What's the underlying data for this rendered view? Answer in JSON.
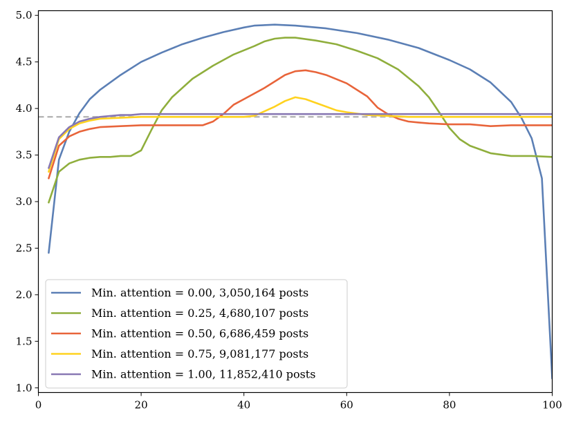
{
  "chart_data": {
    "type": "line",
    "title": "",
    "xlabel": "",
    "ylabel": "",
    "xlim": [
      0,
      100
    ],
    "ylim": [
      0.95,
      5.05
    ],
    "xticks": [
      0,
      20,
      40,
      60,
      80,
      100
    ],
    "yticks": [
      1.0,
      1.5,
      2.0,
      2.5,
      3.0,
      3.5,
      4.0,
      4.5,
      5.0
    ],
    "xtick_labels": [
      "0",
      "20",
      "40",
      "60",
      "80",
      "100"
    ],
    "ytick_labels": [
      "1.0",
      "1.5",
      "2.0",
      "2.5",
      "3.0",
      "3.5",
      "4.0",
      "4.5",
      "5.0"
    ],
    "grid": false,
    "legend_position": "lower-left",
    "reference_line": {
      "y": 3.91,
      "style": "dashed",
      "color": "#b0b0b0"
    },
    "series": [
      {
        "name": "Min. attention = 0.00, 3,050,164 posts",
        "color": "#5b7fb5",
        "x": [
          2,
          4,
          6,
          8,
          10,
          12,
          16,
          20,
          24,
          28,
          32,
          36,
          40,
          42,
          46,
          50,
          56,
          62,
          68,
          74,
          80,
          84,
          88,
          92,
          94,
          96,
          98,
          100
        ],
        "y": [
          2.45,
          3.45,
          3.75,
          3.95,
          4.1,
          4.2,
          4.36,
          4.5,
          4.6,
          4.69,
          4.76,
          4.82,
          4.87,
          4.89,
          4.9,
          4.89,
          4.86,
          4.81,
          4.74,
          4.65,
          4.52,
          4.42,
          4.28,
          4.07,
          3.9,
          3.68,
          3.25,
          1.1
        ]
      },
      {
        "name": "Min. attention = 0.25, 4,680,107 posts",
        "color": "#8fae3c",
        "x": [
          2,
          4,
          6,
          8,
          10,
          12,
          14,
          16,
          18,
          20,
          22,
          24,
          26,
          30,
          34,
          38,
          42,
          44,
          46,
          48,
          50,
          54,
          58,
          62,
          66,
          70,
          74,
          76,
          78,
          80,
          82,
          84,
          88,
          92,
          96,
          100
        ],
        "y": [
          2.99,
          3.32,
          3.41,
          3.45,
          3.47,
          3.48,
          3.48,
          3.49,
          3.49,
          3.55,
          3.77,
          3.98,
          4.12,
          4.32,
          4.46,
          4.58,
          4.67,
          4.72,
          4.75,
          4.76,
          4.76,
          4.73,
          4.69,
          4.62,
          4.54,
          4.42,
          4.24,
          4.12,
          3.96,
          3.79,
          3.67,
          3.6,
          3.52,
          3.49,
          3.49,
          3.48
        ]
      },
      {
        "name": "Min. attention = 0.50, 6,686,459 posts",
        "color": "#e8643a",
        "x": [
          2,
          4,
          6,
          8,
          10,
          12,
          16,
          20,
          24,
          28,
          30,
          32,
          34,
          36,
          38,
          40,
          44,
          46,
          48,
          50,
          52,
          54,
          56,
          60,
          64,
          66,
          68,
          70,
          72,
          74,
          76,
          80,
          84,
          88,
          92,
          96,
          100
        ],
        "y": [
          3.25,
          3.6,
          3.7,
          3.75,
          3.78,
          3.8,
          3.81,
          3.82,
          3.82,
          3.82,
          3.82,
          3.82,
          3.86,
          3.94,
          4.04,
          4.1,
          4.22,
          4.29,
          4.36,
          4.4,
          4.41,
          4.39,
          4.36,
          4.27,
          4.13,
          4.01,
          3.94,
          3.89,
          3.86,
          3.85,
          3.84,
          3.83,
          3.83,
          3.81,
          3.82,
          3.82,
          3.82
        ]
      },
      {
        "name": "Min. attention = 0.75, 9,081,177 posts",
        "color": "#ffd21f",
        "x": [
          2,
          4,
          6,
          8,
          10,
          12,
          16,
          20,
          24,
          28,
          32,
          36,
          40,
          42,
          44,
          46,
          48,
          50,
          52,
          54,
          56,
          58,
          60,
          64,
          68,
          72,
          80,
          90,
          100
        ],
        "y": [
          3.32,
          3.67,
          3.78,
          3.84,
          3.87,
          3.89,
          3.9,
          3.91,
          3.91,
          3.91,
          3.91,
          3.91,
          3.91,
          3.92,
          3.97,
          4.02,
          4.08,
          4.12,
          4.1,
          4.06,
          4.02,
          3.98,
          3.96,
          3.93,
          3.92,
          3.91,
          3.91,
          3.91,
          3.91
        ]
      },
      {
        "name": "Min. attention = 1.00, 11,852,410 posts",
        "color": "#8878b3",
        "x": [
          2,
          4,
          6,
          8,
          10,
          12,
          14,
          16,
          18,
          20,
          24,
          30,
          40,
          50,
          60,
          70,
          80,
          90,
          100
        ],
        "y": [
          3.36,
          3.69,
          3.8,
          3.86,
          3.89,
          3.91,
          3.92,
          3.93,
          3.93,
          3.94,
          3.94,
          3.94,
          3.94,
          3.94,
          3.94,
          3.94,
          3.94,
          3.94,
          3.94
        ]
      }
    ]
  }
}
